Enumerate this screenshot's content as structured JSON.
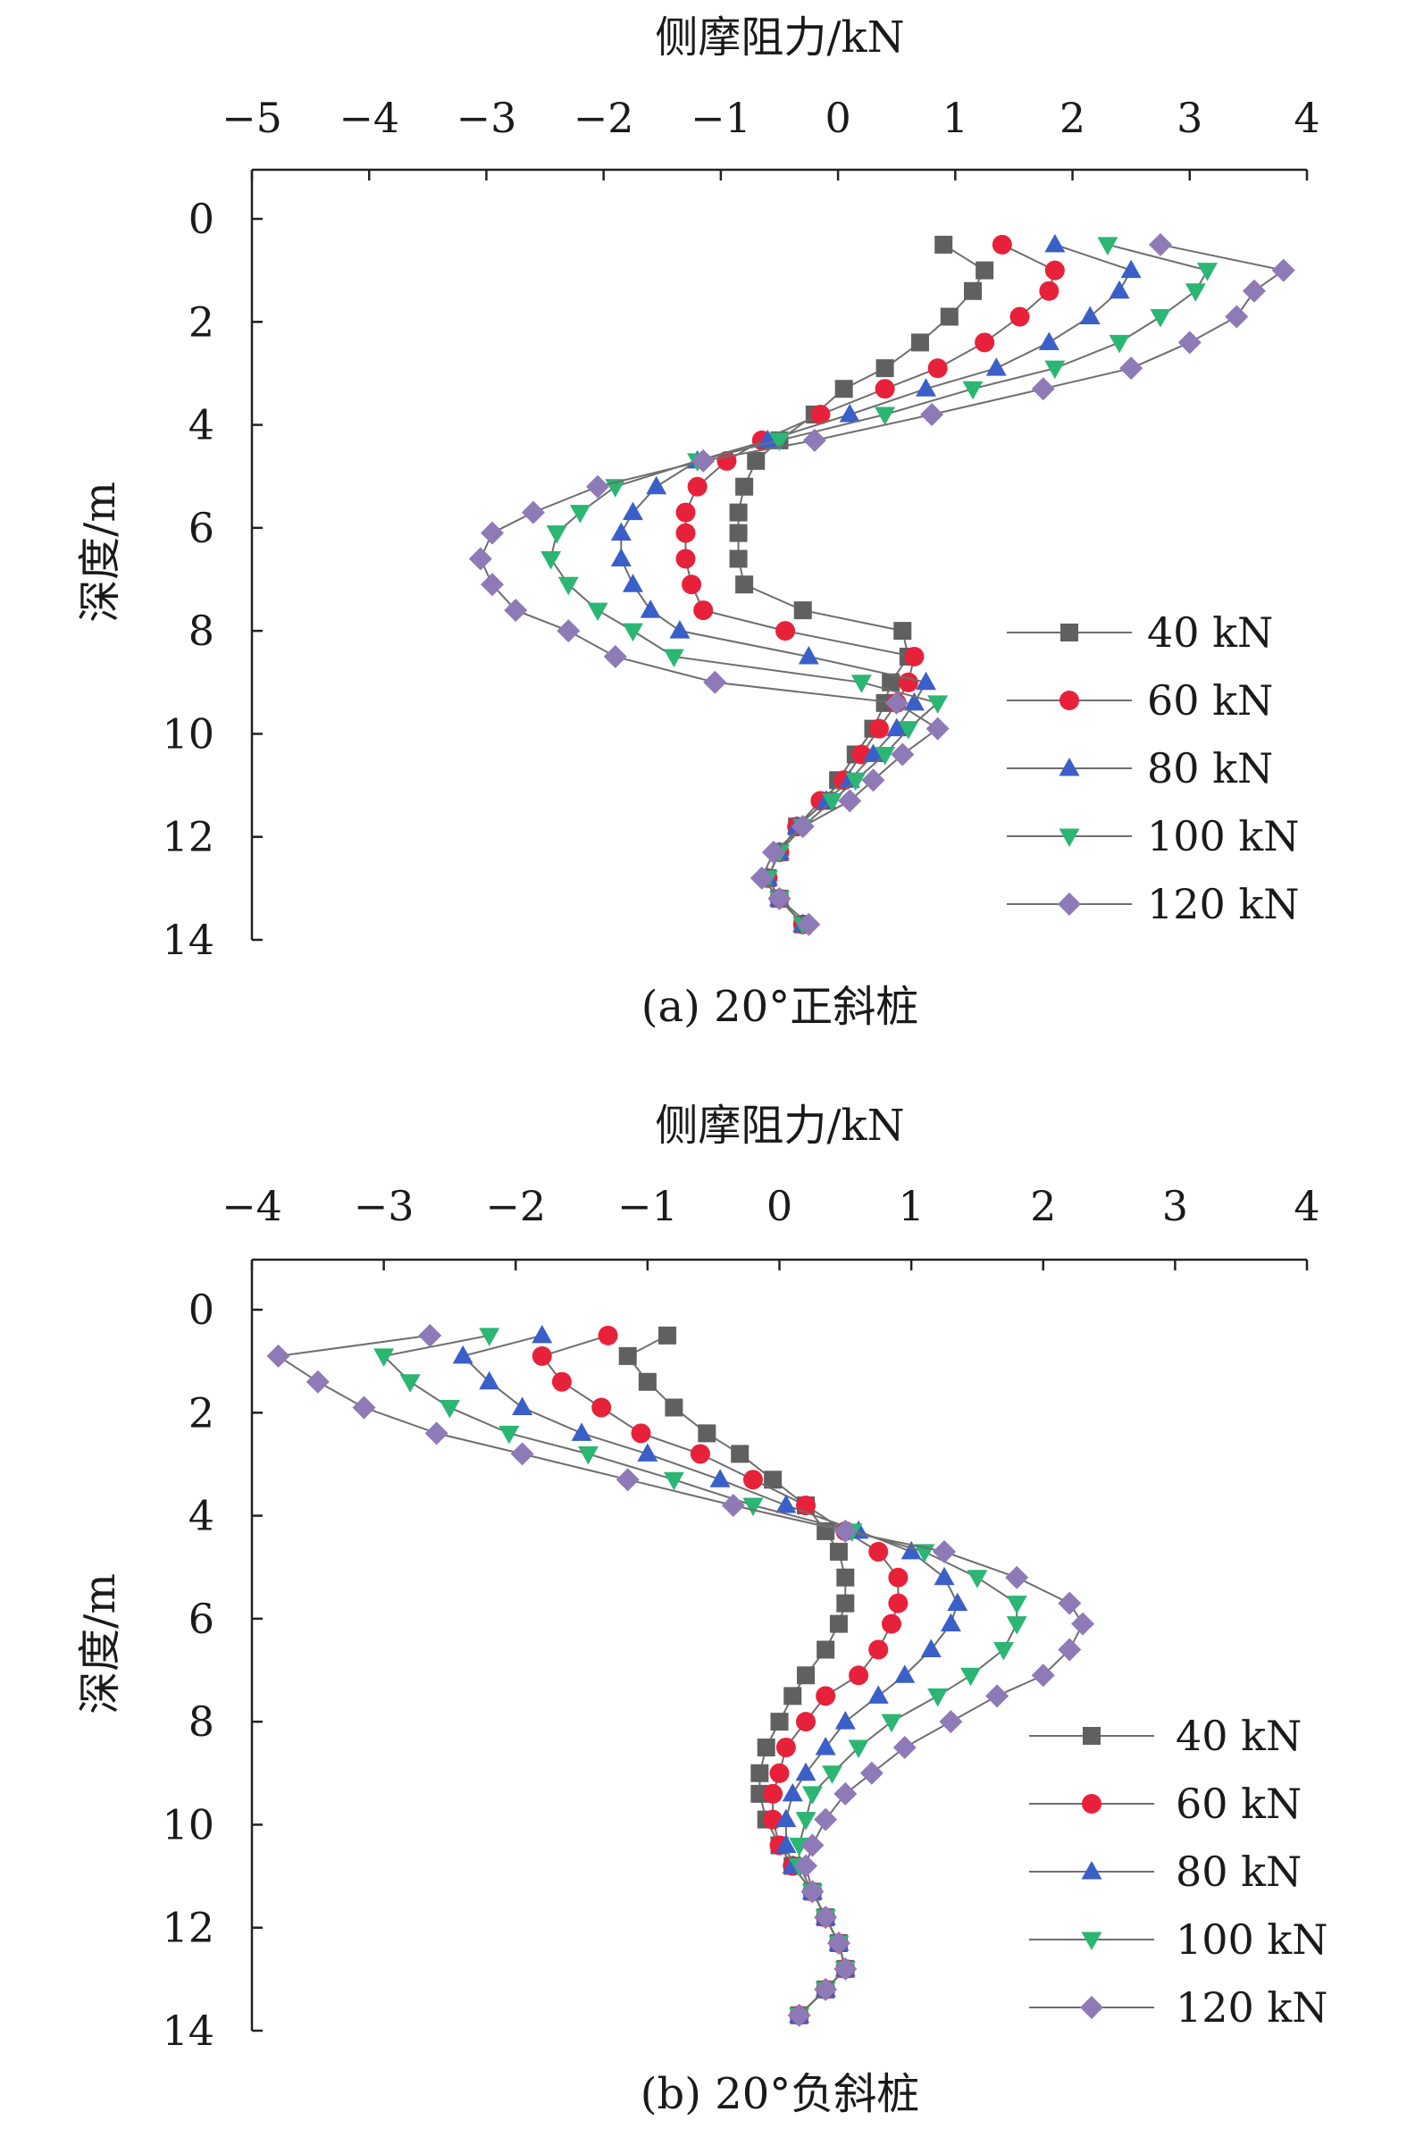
{
  "panels": [
    {
      "caption": "(a) 20°正斜桩",
      "chart_data": {
        "type": "line",
        "xlabel": "侧摩阻力/kN",
        "ylabel": "深度/m",
        "x_axis_position": "top",
        "y_axis_inverted": true,
        "xlim": [
          -5,
          4
        ],
        "ylim": [
          0,
          14
        ],
        "xticks": [
          -5,
          -4,
          -3,
          -2,
          -1,
          0,
          1,
          2,
          3,
          4
        ],
        "xtick_labels": [
          "−5",
          "−4",
          "−3",
          "−2",
          "−1",
          "0",
          "1",
          "2",
          "3",
          "4"
        ],
        "yticks": [
          0,
          2,
          4,
          6,
          8,
          10,
          12,
          14
        ],
        "ytick_labels": [
          "0",
          "2",
          "4",
          "6",
          "8",
          "10",
          "12",
          "14"
        ],
        "grid": false,
        "legend_position": "right",
        "depth": [
          0.5,
          1,
          1.4,
          1.9,
          2.4,
          2.9,
          3.3,
          3.8,
          4.3,
          4.7,
          5.2,
          5.7,
          6.1,
          6.6,
          7.1,
          7.6,
          8,
          8.5,
          9,
          9.4,
          9.9,
          10.4,
          10.9,
          11.3,
          11.8,
          12.3,
          12.8,
          13.2,
          13.7
        ],
        "series": [
          {
            "name": "40 kN",
            "color": "#606060",
            "marker": "square",
            "x": [
              0.9,
              1.25,
              1.15,
              0.95,
              0.7,
              0.4,
              0.05,
              -0.2,
              -0.5,
              -0.7,
              -0.8,
              -0.85,
              -0.85,
              -0.85,
              -0.8,
              -0.3,
              0.55,
              0.6,
              0.45,
              0.4,
              0.3,
              0.15,
              0,
              -0.1,
              -0.35,
              -0.5,
              -0.6,
              -0.5,
              -0.3
            ]
          },
          {
            "name": "60 kN",
            "color": "#e8213a",
            "marker": "circle",
            "x": [
              1.4,
              1.85,
              1.8,
              1.55,
              1.25,
              0.85,
              0.4,
              -0.15,
              -0.65,
              -0.95,
              -1.2,
              -1.3,
              -1.3,
              -1.3,
              -1.25,
              -1.15,
              -0.45,
              0.65,
              0.6,
              0.5,
              0.35,
              0.2,
              0.05,
              -0.15,
              -0.35,
              -0.5,
              -0.6,
              -0.5,
              -0.3
            ]
          },
          {
            "name": "80 kN",
            "color": "#3a5fc8",
            "marker": "triangle",
            "x": [
              1.85,
              2.5,
              2.4,
              2.15,
              1.8,
              1.35,
              0.75,
              0.1,
              -0.6,
              -1.2,
              -1.55,
              -1.75,
              -1.85,
              -1.85,
              -1.75,
              -1.6,
              -1.35,
              -0.25,
              0.75,
              0.65,
              0.5,
              0.3,
              0.1,
              -0.1,
              -0.35,
              -0.5,
              -0.6,
              -0.5,
              -0.3
            ]
          },
          {
            "name": "100 kN",
            "color": "#2bb673",
            "marker": "triangle-down",
            "x": [
              2.3,
              3.15,
              3.05,
              2.75,
              2.4,
              1.85,
              1.15,
              0.4,
              -0.5,
              -1.2,
              -1.9,
              -2.2,
              -2.4,
              -2.45,
              -2.3,
              -2.05,
              -1.75,
              -1.4,
              0.2,
              0.85,
              0.6,
              0.4,
              0.15,
              -0.05,
              -0.3,
              -0.5,
              -0.6,
              -0.5,
              -0.3
            ]
          },
          {
            "name": "120 kN",
            "color": "#8f7ab8",
            "marker": "diamond",
            "x": [
              2.75,
              3.8,
              3.55,
              3.4,
              3.0,
              2.5,
              1.75,
              0.8,
              -0.2,
              -1.15,
              -2.05,
              -2.6,
              -2.95,
              -3.05,
              -2.95,
              -2.75,
              -2.3,
              -1.9,
              -1.05,
              0.5,
              0.85,
              0.55,
              0.3,
              0.1,
              -0.3,
              -0.55,
              -0.65,
              -0.5,
              -0.25
            ]
          }
        ]
      }
    },
    {
      "caption": "(b) 20°负斜桩",
      "chart_data": {
        "type": "line",
        "xlabel": "侧摩阻力/kN",
        "ylabel": "深度/m",
        "x_axis_position": "top",
        "y_axis_inverted": true,
        "xlim": [
          -4,
          4
        ],
        "ylim": [
          0,
          14
        ],
        "xticks": [
          -4,
          -3,
          -2,
          -1,
          0,
          1,
          2,
          3,
          4
        ],
        "xtick_labels": [
          "−4",
          "−3",
          "−2",
          "−1",
          "0",
          "1",
          "2",
          "3",
          "4"
        ],
        "yticks": [
          0,
          2,
          4,
          6,
          8,
          10,
          12,
          14
        ],
        "ytick_labels": [
          "0",
          "2",
          "4",
          "6",
          "8",
          "10",
          "12",
          "14"
        ],
        "grid": false,
        "legend_position": "bottom-right",
        "depth": [
          0.5,
          0.9,
          1.4,
          1.9,
          2.4,
          2.8,
          3.3,
          3.8,
          4.3,
          4.7,
          5.2,
          5.7,
          6.1,
          6.6,
          7.1,
          7.5,
          8,
          8.5,
          9,
          9.4,
          9.9,
          10.4,
          10.8,
          11.3,
          11.8,
          12.3,
          12.8,
          13.2,
          13.7
        ],
        "series": [
          {
            "name": "40 kN",
            "color": "#606060",
            "marker": "square",
            "x": [
              -0.85,
              -1.15,
              -1.0,
              -0.8,
              -0.55,
              -0.3,
              -0.05,
              0.2,
              0.35,
              0.45,
              0.5,
              0.5,
              0.45,
              0.35,
              0.2,
              0.1,
              0,
              -0.1,
              -0.15,
              -0.15,
              -0.1,
              0,
              0.1,
              0.25,
              0.35,
              0.45,
              0.5,
              0.35,
              0.15
            ]
          },
          {
            "name": "60 kN",
            "color": "#e8213a",
            "marker": "circle",
            "x": [
              -1.3,
              -1.8,
              -1.65,
              -1.35,
              -1.05,
              -0.6,
              -0.2,
              0.2,
              0.5,
              0.75,
              0.9,
              0.9,
              0.85,
              0.75,
              0.6,
              0.35,
              0.2,
              0.05,
              0,
              -0.05,
              -0.05,
              0,
              0.1,
              0.25,
              0.35,
              0.45,
              0.5,
              0.35,
              0.15
            ]
          },
          {
            "name": "80 kN",
            "color": "#3a5fc8",
            "marker": "triangle",
            "x": [
              -1.8,
              -2.4,
              -2.2,
              -1.95,
              -1.5,
              -1.0,
              -0.45,
              0.05,
              0.6,
              1.0,
              1.25,
              1.35,
              1.3,
              1.15,
              0.95,
              0.75,
              0.5,
              0.35,
              0.2,
              0.1,
              0.05,
              0.05,
              0.1,
              0.25,
              0.35,
              0.45,
              0.5,
              0.35,
              0.15
            ]
          },
          {
            "name": "100 kN",
            "color": "#2bb673",
            "marker": "triangle-down",
            "x": [
              -2.2,
              -3.0,
              -2.8,
              -2.5,
              -2.05,
              -1.45,
              -0.8,
              -0.2,
              0.55,
              1.1,
              1.5,
              1.8,
              1.8,
              1.7,
              1.45,
              1.2,
              0.85,
              0.6,
              0.4,
              0.25,
              0.2,
              0.15,
              0.15,
              0.25,
              0.35,
              0.45,
              0.5,
              0.35,
              0.15
            ]
          },
          {
            "name": "120 kN",
            "color": "#8f7ab8",
            "marker": "diamond",
            "x": [
              -2.65,
              -3.8,
              -3.5,
              -3.15,
              -2.6,
              -1.95,
              -1.15,
              -0.35,
              0.5,
              1.25,
              1.8,
              2.2,
              2.3,
              2.2,
              2.0,
              1.65,
              1.3,
              0.95,
              0.7,
              0.5,
              0.35,
              0.25,
              0.2,
              0.25,
              0.35,
              0.45,
              0.5,
              0.35,
              0.15
            ]
          }
        ]
      }
    }
  ]
}
